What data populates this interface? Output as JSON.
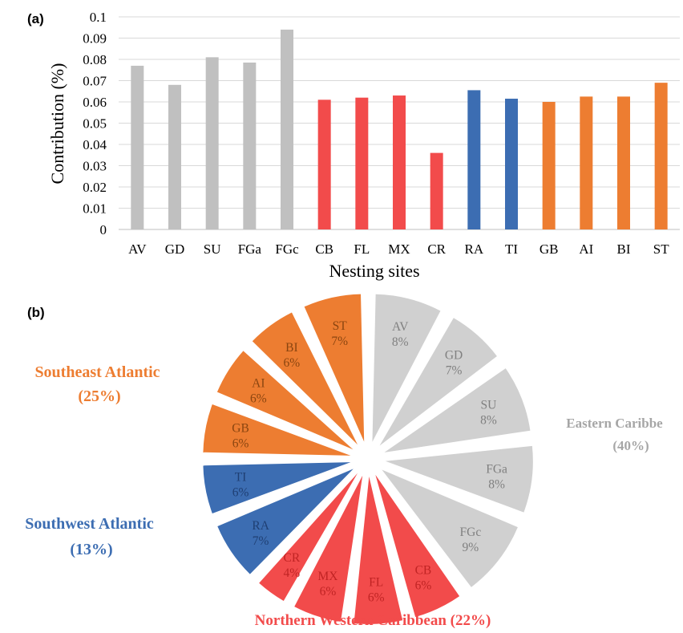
{
  "chart_data": [
    {
      "panel": "(a)",
      "type": "bar",
      "ylabel": "Contribution (%)",
      "xlabel": "Nesting sites",
      "ylim": [
        0,
        0.1
      ],
      "yticks": [
        "0",
        "0.01",
        "0.02",
        "0.03",
        "0.04",
        "0.05",
        "0.06",
        "0.07",
        "0.08",
        "0.09",
        "0.1"
      ],
      "grid": true,
      "categories": [
        "AV",
        "GD",
        "SU",
        "FGa",
        "FGc",
        "CB",
        "FL",
        "MX",
        "CR",
        "RA",
        "TI",
        "GB",
        "AI",
        "BI",
        "ST"
      ],
      "values": [
        0.077,
        0.068,
        0.081,
        0.0785,
        0.094,
        0.061,
        0.062,
        0.063,
        0.036,
        0.0655,
        0.0615,
        0.06,
        0.0625,
        0.0625,
        0.069
      ],
      "bar_colors": [
        "#c0c0c0",
        "#c0c0c0",
        "#c0c0c0",
        "#c0c0c0",
        "#c0c0c0",
        "#f24b4b",
        "#f24b4b",
        "#f24b4b",
        "#f24b4b",
        "#3c6db2",
        "#3c6db2",
        "#ed7d31",
        "#ed7d31",
        "#ed7d31",
        "#ed7d31"
      ]
    },
    {
      "panel": "(b)",
      "type": "pie",
      "slices": [
        {
          "label": "AV",
          "pct": "8%",
          "value": 8,
          "color": "#d0d0d0",
          "text_color": "#808080"
        },
        {
          "label": "GD",
          "pct": "7%",
          "value": 7,
          "color": "#d0d0d0",
          "text_color": "#808080"
        },
        {
          "label": "SU",
          "pct": "8%",
          "value": 8,
          "color": "#d0d0d0",
          "text_color": "#808080"
        },
        {
          "label": "FGa",
          "pct": "8%",
          "value": 8,
          "color": "#d0d0d0",
          "text_color": "#808080"
        },
        {
          "label": "FGc",
          "pct": "9%",
          "value": 9,
          "color": "#d0d0d0",
          "text_color": "#808080"
        },
        {
          "label": "CB",
          "pct": "6%",
          "value": 6,
          "color": "#f24b4b",
          "text_color": "#c02424"
        },
        {
          "label": "FL",
          "pct": "6%",
          "value": 6,
          "color": "#f24b4b",
          "text_color": "#c02424"
        },
        {
          "label": "MX",
          "pct": "6%",
          "value": 6,
          "color": "#f24b4b",
          "text_color": "#c02424"
        },
        {
          "label": "CR",
          "pct": "4%",
          "value": 4,
          "color": "#f24b4b",
          "text_color": "#c02424"
        },
        {
          "label": "RA",
          "pct": "7%",
          "value": 7,
          "color": "#3c6db2",
          "text_color": "#1f3f73"
        },
        {
          "label": "TI",
          "pct": "6%",
          "value": 6,
          "color": "#3c6db2",
          "text_color": "#1f3f73"
        },
        {
          "label": "GB",
          "pct": "6%",
          "value": 6,
          "color": "#ed7d31",
          "text_color": "#8a4510"
        },
        {
          "label": "AI",
          "pct": "6%",
          "value": 6,
          "color": "#ed7d31",
          "text_color": "#8a4510"
        },
        {
          "label": "BI",
          "pct": "6%",
          "value": 6,
          "color": "#ed7d31",
          "text_color": "#8a4510"
        },
        {
          "label": "ST",
          "pct": "7%",
          "value": 7,
          "color": "#ed7d31",
          "text_color": "#8a4510"
        }
      ],
      "groups": [
        {
          "name": "Southeast Atlantic",
          "pct": "(25%)",
          "color": "#ed7d31"
        },
        {
          "name": "Eastern Caribbe",
          "pct": "(40%)",
          "color": "#a6a6a6"
        },
        {
          "name": "Southwest Atlantic",
          "pct": "(13%)",
          "color": "#3c6db2"
        },
        {
          "name": "Northern Western Caribbean (22%)",
          "pct": "",
          "color": "#f24b4b"
        }
      ]
    }
  ]
}
